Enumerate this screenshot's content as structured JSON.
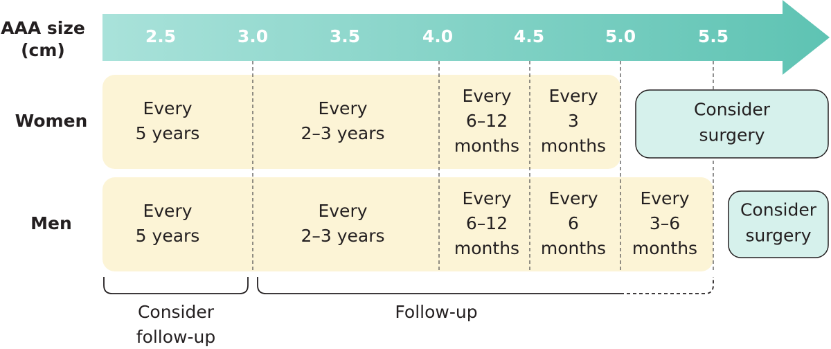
{
  "axis": {
    "label": [
      "AAA size",
      "(cm)"
    ],
    "ticks": [
      "2.5",
      "3.0",
      "3.5",
      "4.0",
      "4.5",
      "5.0",
      "5.5"
    ]
  },
  "rows": [
    {
      "label": "Women",
      "cells": [
        [
          "Every",
          "5 years"
        ],
        [
          "Every",
          "2–3 years"
        ],
        [
          "Every",
          "6–12",
          "months"
        ],
        [
          "Every",
          "3",
          "months"
        ]
      ],
      "surgery": [
        "Consider",
        "surgery"
      ]
    },
    {
      "label": "Men",
      "cells": [
        [
          "Every",
          "5 years"
        ],
        [
          "Every",
          "2–3 years"
        ],
        [
          "Every",
          "6–12",
          "months"
        ],
        [
          "Every",
          "6",
          "months"
        ],
        [
          "Every",
          "3–6",
          "months"
        ]
      ],
      "surgery": [
        "Consider",
        "surgery"
      ]
    }
  ],
  "brackets": [
    [
      "Consider",
      "follow-up"
    ],
    [
      "Follow-up"
    ]
  ]
}
